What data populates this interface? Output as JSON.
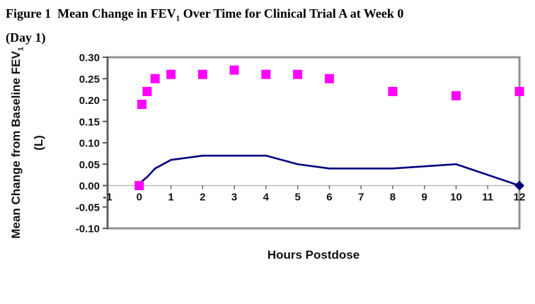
{
  "figure": {
    "title_part1": "Figure 1  Mean Change in FEV",
    "title_sub": "1",
    "title_part2": " Over Time for Clinical Trial A at Week 0",
    "title_line2": "(Day 1)"
  },
  "chart_data": {
    "type": "line",
    "title": "Figure 1 Mean Change in FEV1 Over Time for Clinical Trial A at Week 0 (Day 1)",
    "xlabel": "Hours Postdose",
    "ylabel_main": "Mean Change from Baseline FEV",
    "ylabel_sub": "1",
    "ylabel_unit": "(L)",
    "xlim": [
      -1,
      12
    ],
    "ylim": [
      -0.1,
      0.3
    ],
    "xticks": [
      -1,
      0,
      1,
      2,
      3,
      4,
      5,
      6,
      7,
      8,
      9,
      10,
      11,
      12
    ],
    "yticks": [
      "0.30",
      "0.25",
      "0.20",
      "0.15",
      "0.10",
      "0.05",
      "0.00",
      "-0.05",
      "-0.10"
    ],
    "legend": "none",
    "grid": "zero-line-only",
    "x": [
      0,
      0.083,
      0.25,
      0.5,
      1,
      2,
      3,
      4,
      5,
      6,
      8,
      10,
      12
    ],
    "series": [
      {
        "name": "magenta-squares",
        "marker": "square",
        "line": false,
        "color": "#FF00FF",
        "values": [
          0.0,
          0.19,
          0.22,
          0.25,
          0.26,
          0.26,
          0.27,
          0.26,
          0.26,
          0.25,
          0.22,
          0.21,
          0.22
        ]
      },
      {
        "name": "navy-line",
        "marker": "diamond-end",
        "line": true,
        "color": "#000080",
        "values": [
          0.0,
          0.01,
          0.02,
          0.04,
          0.06,
          0.07,
          0.07,
          0.07,
          0.05,
          0.04,
          0.04,
          0.05,
          0.0
        ]
      }
    ],
    "colors": {
      "border": "#919191",
      "axis": "#5a5a5a",
      "zero_line": "#aeaeae",
      "text": "#111111"
    }
  }
}
